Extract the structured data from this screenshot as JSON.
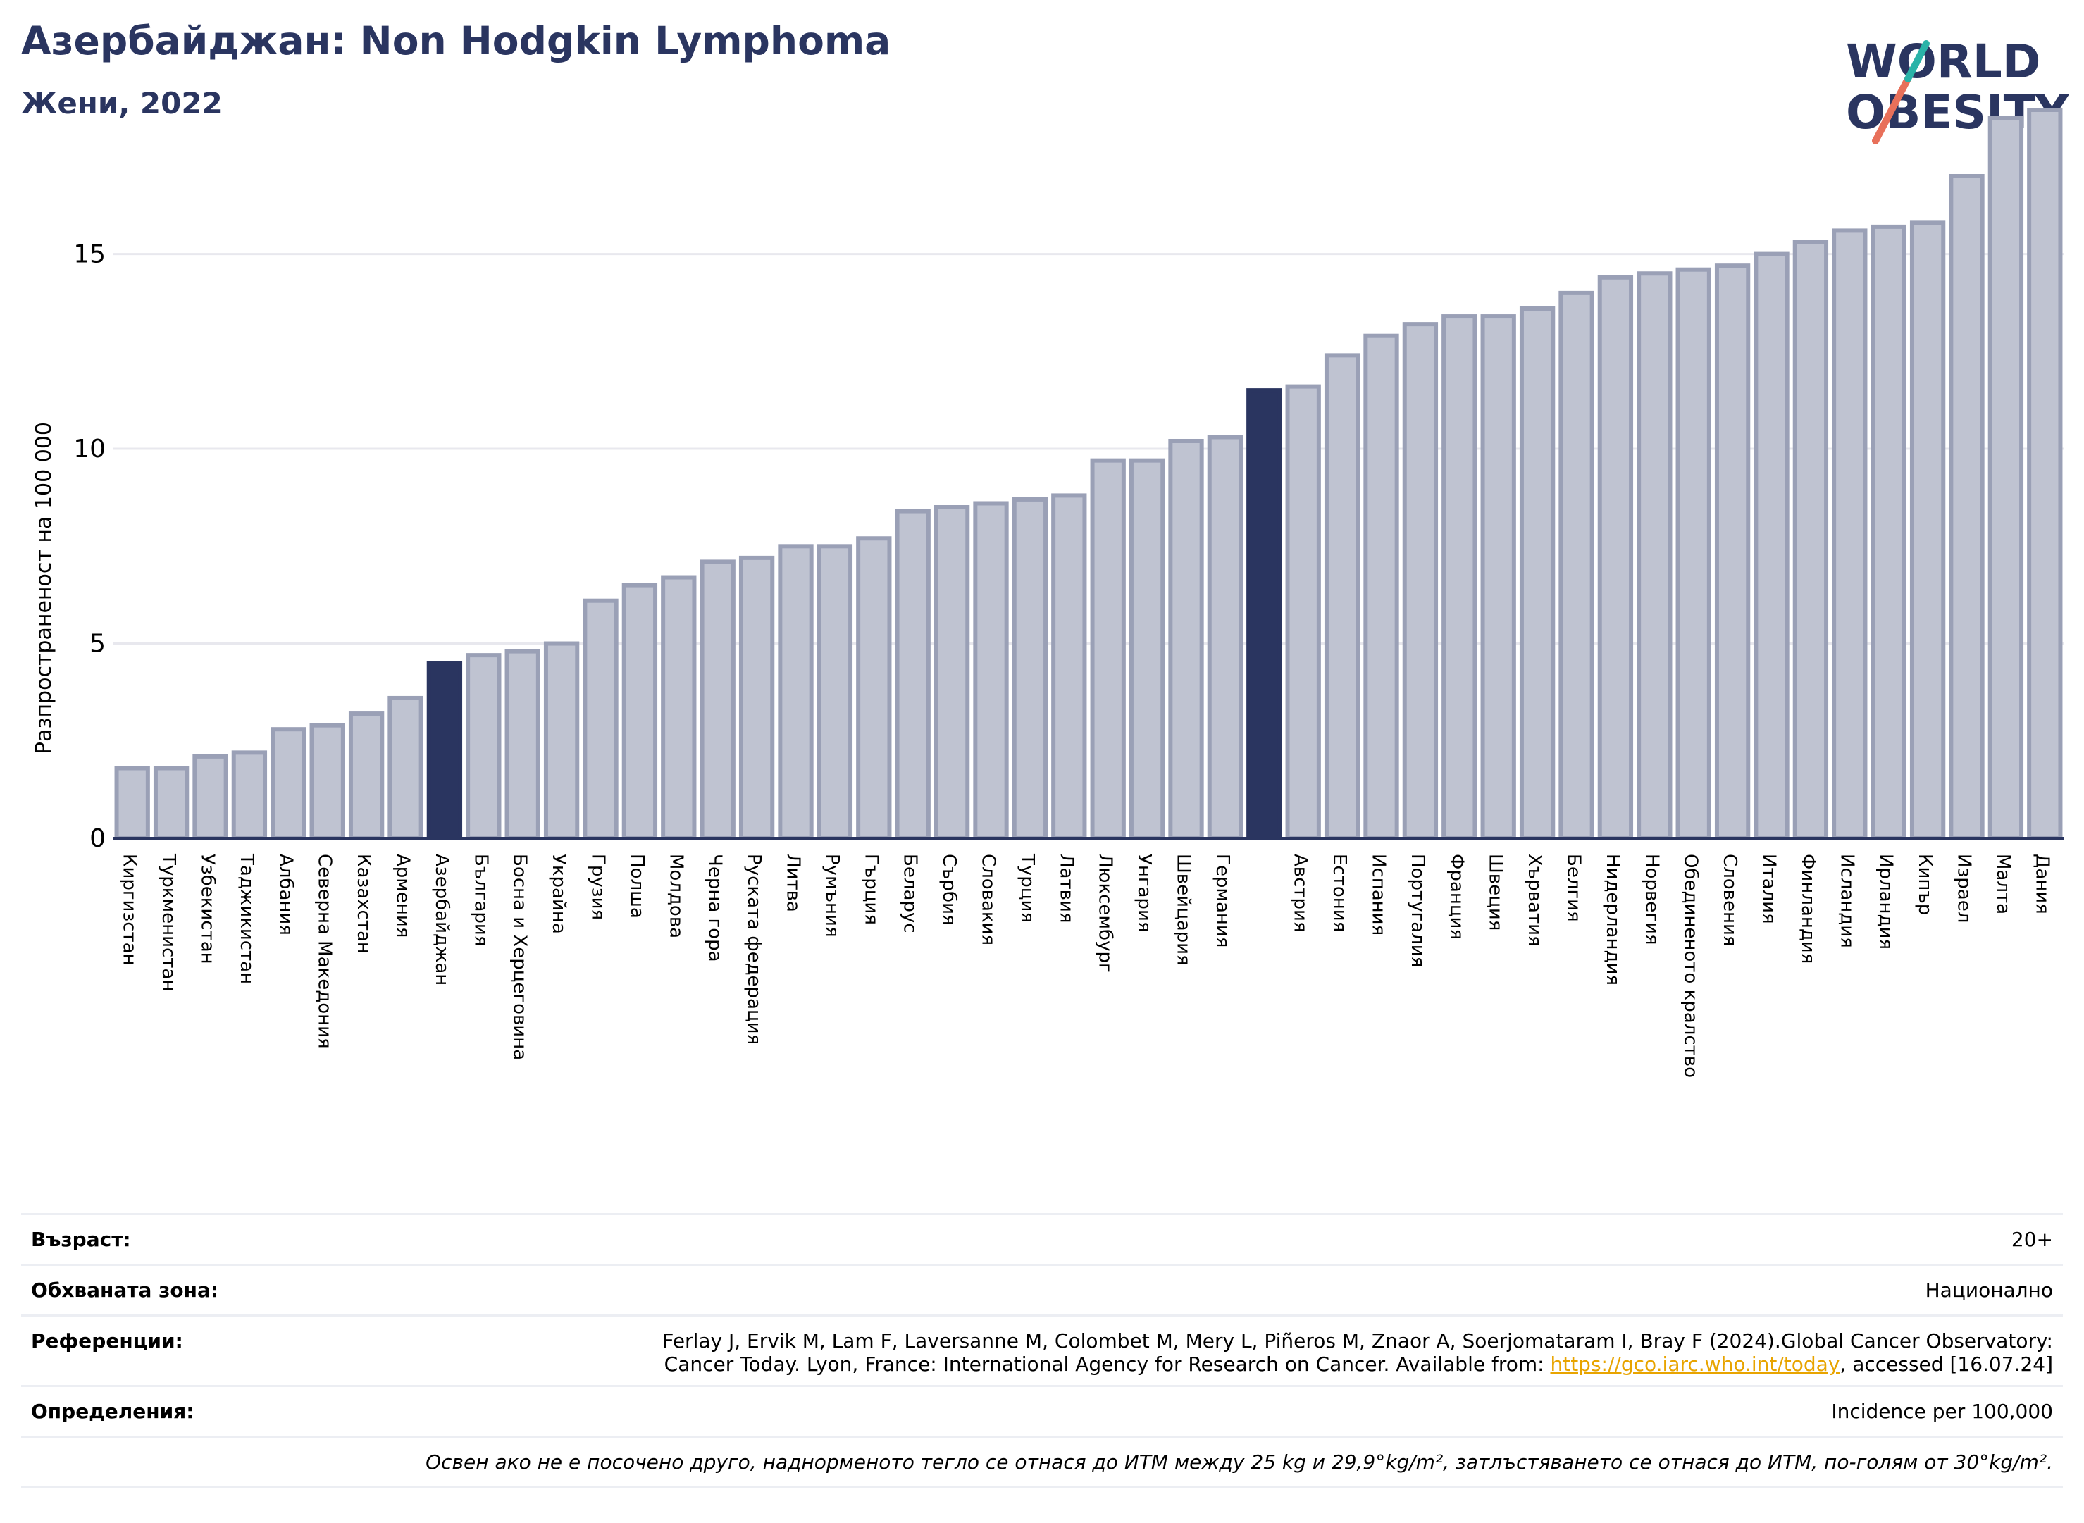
{
  "header": {
    "title": "Азербайджан: Non Hodgkin Lymphoma",
    "subtitle": "Жени, 2022"
  },
  "logo": {
    "line1": "WORLD",
    "line2": "OBESITY"
  },
  "colors": {
    "bar": "#bfc3d1",
    "bar_border": "#9aa0b6",
    "highlight": "#2a3560",
    "title": "#2a3560",
    "grid": "#e8e8ee"
  },
  "chart_data": {
    "type": "bar",
    "ylabel": "Разпространеност на 100 000",
    "ylim": [
      0,
      19
    ],
    "yticks": [
      0,
      5,
      10,
      15
    ],
    "grid": true,
    "categories": [
      "Киргизстан",
      "Туркменистан",
      "Узбекистан",
      "Таджикистан",
      "Албания",
      "Северна Македония",
      "Казахстан",
      "Армения",
      "Азербайджан",
      "България",
      "Босна и Херцеговина",
      "Украйна",
      "Грузия",
      "Полша",
      "Молдова",
      "Черна гора",
      "Руската федерация",
      "Литва",
      "Румъния",
      "Гърция",
      "Беларус",
      "Сърбия",
      "Словакия",
      "Турция",
      "Латвия",
      "Люксембург",
      "Унгария",
      "Швейцария",
      "Германия",
      "",
      "Австрия",
      "Естония",
      "Испания",
      "Португалия",
      "Франция",
      "Швеция",
      "Хърватия",
      "Белгия",
      "Нидерландия",
      "Норвегия",
      "Обединеното кралство",
      "Словения",
      "Италия",
      "Финландия",
      "Исландия",
      "Ирландия",
      "Кипър",
      "Израел",
      "Малта",
      "Дания"
    ],
    "values": [
      1.8,
      1.8,
      2.1,
      2.2,
      2.8,
      2.9,
      3.2,
      3.6,
      4.5,
      4.7,
      4.8,
      5.0,
      6.1,
      6.5,
      6.7,
      7.1,
      7.2,
      7.5,
      7.5,
      7.7,
      8.4,
      8.5,
      8.6,
      8.7,
      8.8,
      9.7,
      9.7,
      10.2,
      10.3,
      11.5,
      11.6,
      12.4,
      12.9,
      13.2,
      13.4,
      13.4,
      13.6,
      14.0,
      14.4,
      14.5,
      14.6,
      14.7,
      15.0,
      15.3,
      15.6,
      15.7,
      15.8,
      17.0,
      18.5,
      18.7
    ],
    "highlight": [
      8,
      29
    ]
  },
  "info": {
    "age_label": "Възраст:",
    "age_value": "20+",
    "area_label": "Обхваната зона:",
    "area_value": "Национално",
    "refs_label": "Референции:",
    "refs_line1": "Ferlay J, Ervik M, Lam F, Laversanne M, Colombet M, Mery L, Piñeros M, Znaor A, Soerjomataram I, Bray F (2024).Global Cancer Observatory:",
    "refs_line2_a": "Cancer Today. Lyon, France: International Agency for Research on Cancer. Available from: ",
    "refs_link": "https://gco.iarc.who.int/today",
    "refs_line2_b": ", accessed [16.07.24]",
    "def_label": "Определения:",
    "def_value": "Incidence per 100,000",
    "note": "Освен ако не е посочено друго, наднорменото тегло се отнася до ИТМ между 25 kg и 29,9°kg/m², затлъстяването се отнася до ИТМ, по-голям от 30°kg/m²."
  }
}
